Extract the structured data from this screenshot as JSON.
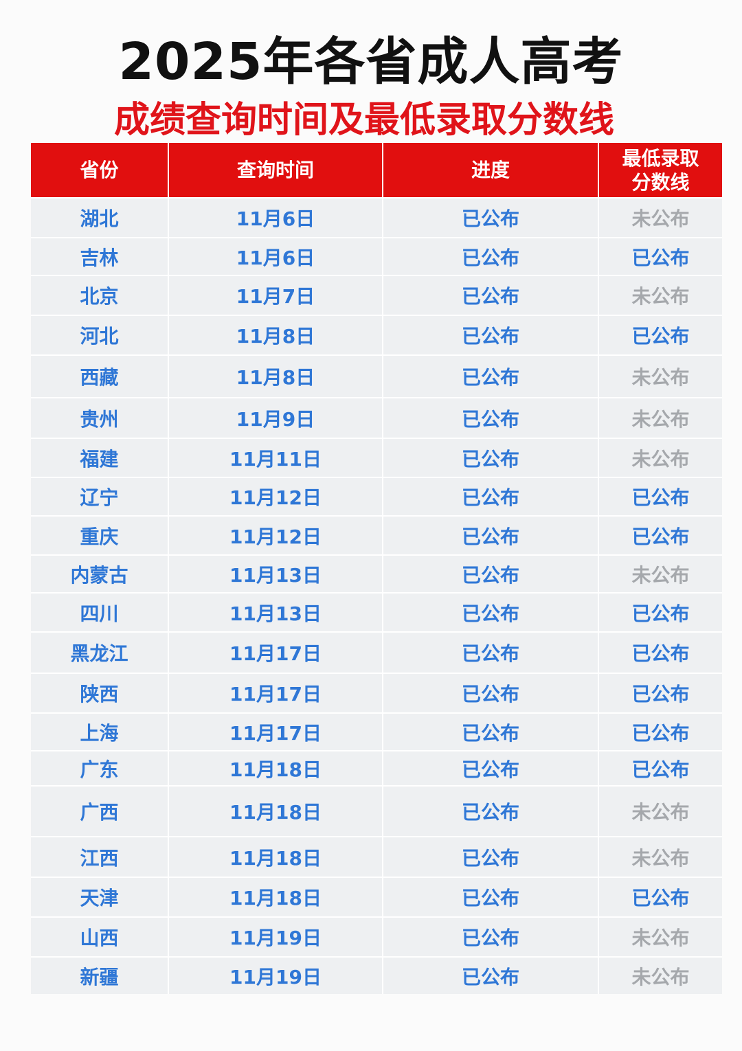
{
  "title": "2025年各省成人高考",
  "subtitle": "成绩查询时间及最低录取分数线",
  "colors": {
    "header_bg": "#e10f0f",
    "published": "#2f77d6",
    "unpublished": "#a5a8ac"
  },
  "table": {
    "headers": [
      "省份",
      "查询时间",
      "进度",
      "最低录取\n分数线"
    ],
    "rows": [
      [
        "湖北",
        "11月6日",
        "已公布",
        "未公布"
      ],
      [
        "吉林",
        "11月6日",
        "已公布",
        "已公布"
      ],
      [
        "北京",
        "11月7日",
        "已公布",
        "未公布"
      ],
      [
        "河北",
        "11月8日",
        "已公布",
        "已公布"
      ],
      [
        "西藏",
        "11月8日",
        "已公布",
        "未公布"
      ],
      [
        "贵州",
        "11月9日",
        "已公布",
        "未公布"
      ],
      [
        "福建",
        "11月11日",
        "已公布",
        "未公布"
      ],
      [
        "辽宁",
        "11月12日",
        "已公布",
        "已公布"
      ],
      [
        "重庆",
        "11月12日",
        "已公布",
        "已公布"
      ],
      [
        "内蒙古",
        "11月13日",
        "已公布",
        "未公布"
      ],
      [
        "四川",
        "11月13日",
        "已公布",
        "已公布"
      ],
      [
        "黑龙江",
        "11月17日",
        "已公布",
        "已公布"
      ],
      [
        "陕西",
        "11月17日",
        "已公布",
        "已公布"
      ],
      [
        "上海",
        "11月17日",
        "已公布",
        "已公布"
      ],
      [
        "广东",
        "11月18日",
        "已公布",
        "已公布"
      ],
      [
        "广西",
        "11月18日",
        "已公布",
        "未公布"
      ],
      [
        "江西",
        "11月18日",
        "已公布",
        "未公布"
      ],
      [
        "天津",
        "11月18日",
        "已公布",
        "已公布"
      ],
      [
        "山西",
        "11月19日",
        "已公布",
        "未公布"
      ],
      [
        "新疆",
        "11月19日",
        "已公布",
        "未公布"
      ]
    ]
  }
}
